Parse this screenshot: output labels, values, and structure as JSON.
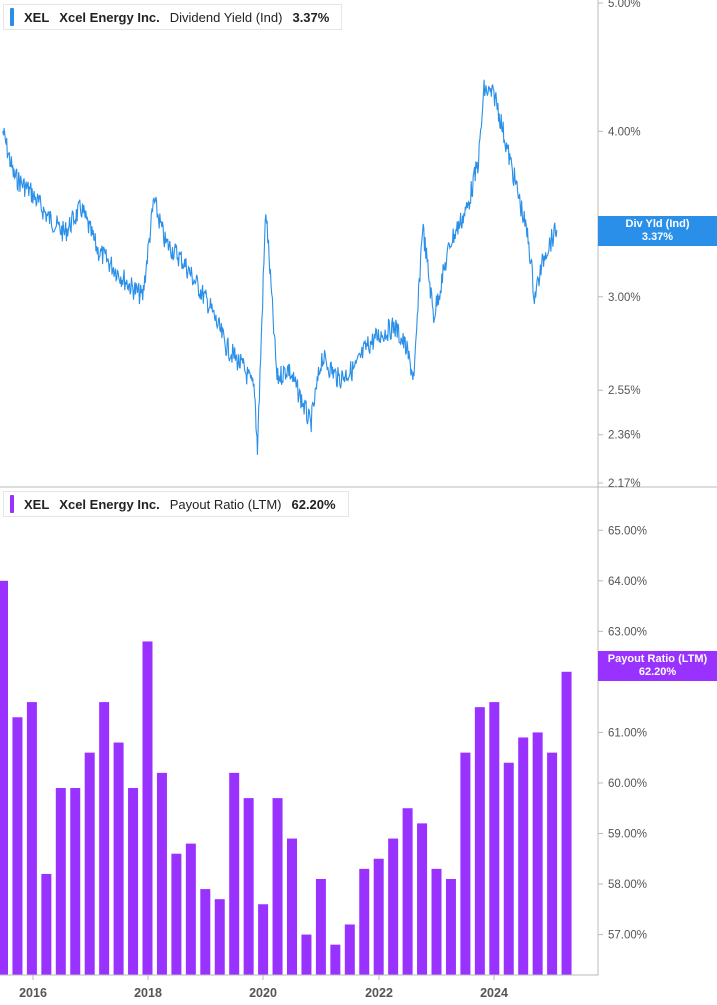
{
  "colors": {
    "yield": "#2a8fe8",
    "payout": "#9a32ff",
    "axis": "#bbbbbb"
  },
  "legend_top": {
    "ticker": "XEL",
    "name": "Xcel Energy Inc.",
    "metric": "Dividend Yield (Ind)",
    "value": "3.37%"
  },
  "legend_bottom": {
    "ticker": "XEL",
    "name": "Xcel Energy Inc.",
    "metric": "Payout Ratio (LTM)",
    "value": "62.20%"
  },
  "badge_top": {
    "line1": "Div Yld (Ind)",
    "line2": "3.37%"
  },
  "badge_bottom": {
    "line1": "Payout Ratio (LTM)",
    "line2": "62.20%"
  },
  "chart_data": [
    {
      "type": "line",
      "series": [
        {
          "name": "Dividend Yield (Ind)"
        }
      ],
      "y_ticks": [
        "5.00%",
        "4.00%",
        "3.00%",
        "2.55%",
        "2.36%",
        "2.17%"
      ],
      "y_scale": "log",
      "ylim": [
        2.17,
        5.0
      ],
      "x": [
        2015.5,
        2015.7,
        2016.0,
        2016.3,
        2016.6,
        2016.9,
        2017.2,
        2017.5,
        2017.8,
        2018.0,
        2018.2,
        2018.4,
        2018.7,
        2019.0,
        2019.2,
        2019.5,
        2019.8,
        2020.0,
        2020.05,
        2020.2,
        2020.4,
        2020.6,
        2020.85,
        2021.0,
        2021.2,
        2021.5,
        2021.8,
        2022.0,
        2022.2,
        2022.5,
        2022.7,
        2022.85,
        2023.0,
        2023.2,
        2023.5,
        2023.8,
        2024.0,
        2024.1,
        2024.3,
        2024.5,
        2024.7,
        2024.9,
        2025.0,
        2025.2,
        2025.4
      ],
      "y": [
        4.0,
        3.7,
        3.6,
        3.45,
        3.35,
        3.5,
        3.25,
        3.15,
        3.05,
        3.0,
        3.55,
        3.3,
        3.2,
        3.05,
        2.95,
        2.75,
        2.65,
        2.55,
        2.3,
        3.5,
        2.6,
        2.65,
        2.5,
        2.4,
        2.7,
        2.6,
        2.65,
        2.75,
        2.8,
        2.85,
        2.75,
        2.6,
        3.4,
        2.9,
        3.3,
        3.5,
        3.8,
        4.3,
        4.25,
        3.9,
        3.6,
        3.3,
        3.0,
        3.25,
        3.37
      ],
      "x_ticks": [
        "2016",
        "2018",
        "2020",
        "2022",
        "2024"
      ]
    },
    {
      "type": "bar",
      "series": [
        {
          "name": "Payout Ratio (LTM)"
        }
      ],
      "y_ticks": [
        "65.00%",
        "64.00%",
        "63.00%",
        "61.00%",
        "60.00%",
        "59.00%",
        "58.00%",
        "57.00%"
      ],
      "ylim": [
        56.2,
        65.5
      ],
      "values": [
        64.0,
        61.3,
        61.6,
        58.2,
        59.9,
        59.9,
        60.6,
        61.6,
        60.8,
        59.9,
        62.8,
        60.2,
        58.6,
        58.8,
        57.9,
        57.7,
        60.2,
        59.7,
        57.6,
        59.7,
        58.9,
        57.0,
        58.1,
        56.8,
        57.2,
        58.3,
        58.5,
        58.9,
        59.5,
        59.2,
        58.3,
        58.1,
        60.6,
        61.5,
        61.6,
        60.4,
        60.9,
        61.0,
        60.6,
        62.2
      ]
    }
  ]
}
